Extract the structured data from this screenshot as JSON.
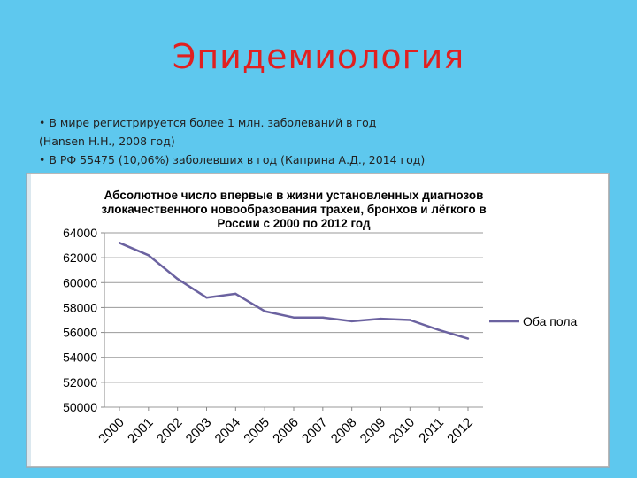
{
  "slide": {
    "title": "Эпидемиология",
    "bullets": [
      "• В мире регистрируется более 1 млн. заболеваний в год",
      "(Hansen H.H., 2008 год)",
      "• В РФ 55475 (10,06%) заболевших в год (Каприна А.Д., 2014 год)"
    ]
  },
  "chart_data": {
    "type": "line",
    "title": [
      "Абсолютное число впервые в жизни установленных диагнозов",
      "злокачественного новообразования трахеи, бронхов и лёгкого в",
      "России с 2000 по 2012 год"
    ],
    "xlabel": "",
    "ylabel": "",
    "ylim": [
      50000,
      64000
    ],
    "yticks": [
      "64000",
      "62000",
      "60000",
      "58000",
      "56000",
      "54000",
      "52000",
      "50000"
    ],
    "categories": [
      "2000",
      "2001",
      "2002",
      "2003",
      "2004",
      "2005",
      "2006",
      "2007",
      "2008",
      "2009",
      "2010",
      "2011",
      "2012"
    ],
    "series": [
      {
        "name": "Оба пола",
        "color": "#6b62a0",
        "values": [
          63200,
          62200,
          60300,
          58800,
          59100,
          57700,
          57200,
          57200,
          56900,
          57100,
          57000,
          56200,
          55500
        ]
      }
    ],
    "grid": true,
    "legend": "right"
  }
}
